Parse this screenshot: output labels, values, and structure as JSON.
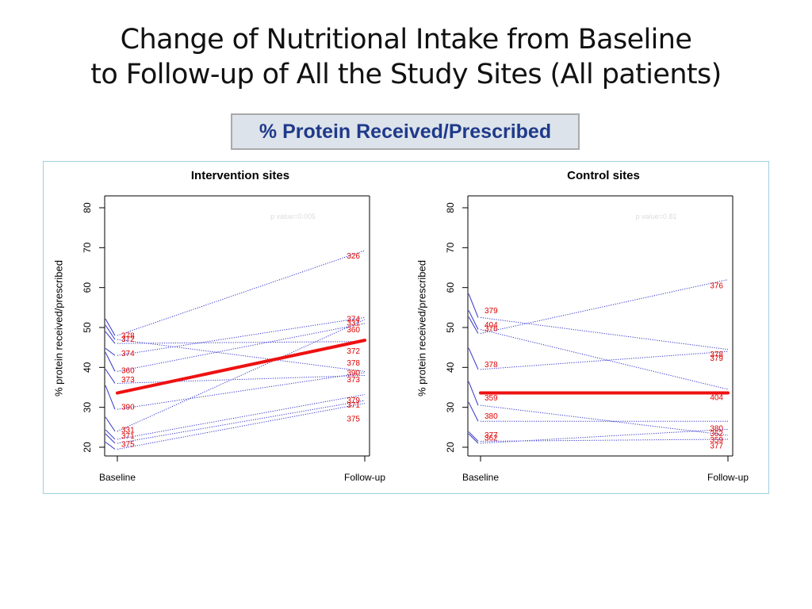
{
  "slide": {
    "title_line1": "Change of Nutritional Intake from Baseline",
    "title_line2": "to Follow-up of All the Study Sites (All patients)",
    "subtitle": "% Protein Received/Prescribed"
  },
  "chart_data": [
    {
      "type": "line",
      "title": "Intervention sites",
      "ylabel": "% protein received/prescribed",
      "categories": [
        "Baseline",
        "Follow-up"
      ],
      "ylim": [
        20,
        80
      ],
      "yticks": [
        20,
        30,
        40,
        50,
        60,
        70,
        80
      ],
      "annotation": "p value=0.005",
      "colors": {
        "patient": "#3333cc",
        "mean": "#ee1111",
        "label": "#e00000"
      },
      "mean_line": {
        "values": [
          33.6,
          46.8
        ]
      },
      "series": [
        {
          "name": "326",
          "values": [
            48.0,
            69.3
          ],
          "label_end": 67.8
        },
        {
          "name": "374",
          "values": [
            43.0,
            52.5
          ],
          "label_end": 52.0
        },
        {
          "name": "331",
          "values": [
            24.0,
            52.0
          ],
          "label_end": 51.0
        },
        {
          "name": "360",
          "values": [
            39.0,
            51.0
          ],
          "label_end": 49.3
        },
        {
          "name": "372",
          "values": [
            46.0,
            46.5
          ],
          "label_end": 44.0
        },
        {
          "name": "378",
          "values": [
            47.0,
            39.0
          ],
          "label_end": 41.0
        },
        {
          "name": "390",
          "values": [
            29.5,
            38.7
          ],
          "label_end": 38.5
        },
        {
          "name": "373",
          "values": [
            36.0,
            38.0
          ],
          "label_end": 36.8
        },
        {
          "name": "379",
          "values": [
            22.0,
            33.2
          ],
          "label_end": 31.7
        },
        {
          "name": "371",
          "values": [
            21.0,
            31.7
          ],
          "label_end": 30.5
        },
        {
          "name": "375",
          "values": [
            19.5,
            31.0
          ],
          "label_end": 27.0
        }
      ],
      "left_labels": [
        {
          "name": "378",
          "y": 47.8
        },
        {
          "name": "372",
          "y": 46.9
        },
        {
          "name": "374",
          "y": 43.4
        },
        {
          "name": "360",
          "y": 39.1
        },
        {
          "name": "373",
          "y": 36.8
        },
        {
          "name": "390",
          "y": 30.0
        },
        {
          "name": "331",
          "y": 24.2
        },
        {
          "name": "371",
          "y": 22.7
        },
        {
          "name": "375",
          "y": 20.6
        }
      ]
    },
    {
      "type": "line",
      "title": "Control sites",
      "ylabel": "% protein received/prescribed",
      "categories": [
        "Baseline",
        "Follow-up"
      ],
      "ylim": [
        20,
        80
      ],
      "yticks": [
        20,
        30,
        40,
        50,
        60,
        70,
        80
      ],
      "annotation": "p value=0.81",
      "colors": {
        "patient": "#3333cc",
        "mean": "#ee1111",
        "label": "#e00000"
      },
      "mean_line": {
        "values": [
          33.6,
          33.6
        ]
      },
      "series": [
        {
          "name": "376",
          "values": [
            48.5,
            62.0
          ],
          "label_end": 60.4
        },
        {
          "name": "379",
          "values": [
            52.5,
            44.5
          ],
          "label_end": 42.2
        },
        {
          "name": "378",
          "values": [
            39.5,
            44.0
          ],
          "label_end": 43.2
        },
        {
          "name": "404",
          "values": [
            49.5,
            34.5
          ],
          "label_end": 32.3
        },
        {
          "name": "380",
          "values": [
            26.5,
            26.5
          ],
          "label_end": 24.6
        },
        {
          "name": "359",
          "values": [
            30.5,
            23.0
          ],
          "label_end": 21.7
        },
        {
          "name": "362",
          "values": [
            21.0,
            24.5
          ],
          "label_end": 23.3
        },
        {
          "name": "377",
          "values": [
            21.5,
            22.0
          ],
          "label_end": 20.2
        }
      ],
      "left_labels": [
        {
          "name": "379",
          "y": 54.1
        },
        {
          "name": "404",
          "y": 50.5
        },
        {
          "name": "376",
          "y": 49.6
        },
        {
          "name": "378",
          "y": 40.6
        },
        {
          "name": "359",
          "y": 32.2
        },
        {
          "name": "380",
          "y": 27.7
        },
        {
          "name": "377",
          "y": 22.9
        },
        {
          "name": "362",
          "y": 22.2
        }
      ]
    }
  ]
}
